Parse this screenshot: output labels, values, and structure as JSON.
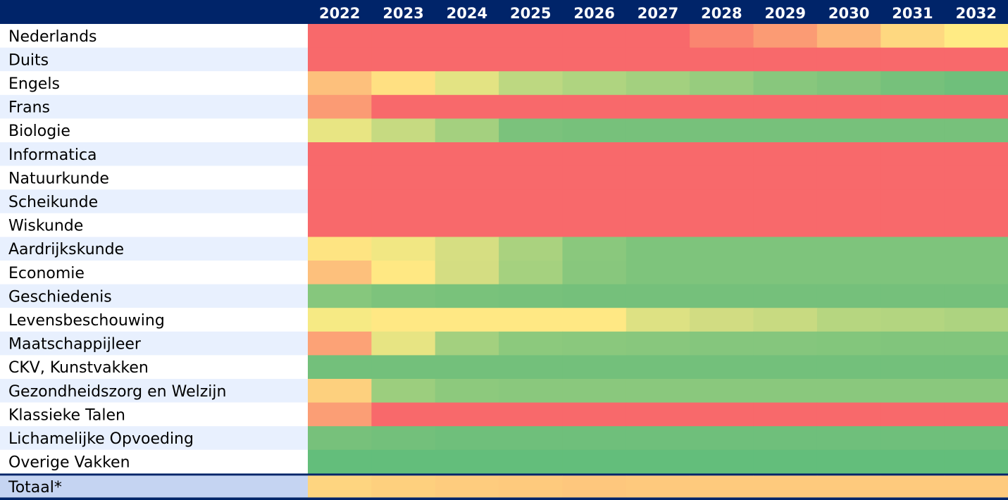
{
  "chart_data": {
    "type": "heatmap",
    "x": [
      "2022",
      "2023",
      "2024",
      "2025",
      "2026",
      "2027",
      "2028",
      "2029",
      "2030",
      "2031",
      "2032"
    ],
    "rows": [
      {
        "label": "Nederlands",
        "colors": [
          "#F8696B",
          "#F8696B",
          "#F8696B",
          "#F8696B",
          "#F8696B",
          "#F8696B",
          "#FA8570",
          "#FB9B74",
          "#FDB77A",
          "#FED880",
          "#FFEB84"
        ]
      },
      {
        "label": "Duits",
        "colors": [
          "#F8696B",
          "#F8696B",
          "#F8696B",
          "#F8696B",
          "#F8696B",
          "#F8696B",
          "#F8696B",
          "#F8696B",
          "#F8696B",
          "#F8696B",
          "#F8696B"
        ]
      },
      {
        "label": "Engels",
        "colors": [
          "#FDC07C",
          "#FFE082",
          "#E3E383",
          "#BDD881",
          "#AFD480",
          "#A3D07F",
          "#97CC7E",
          "#88C77D",
          "#80C47C",
          "#76C17B",
          "#6FBF7B"
        ]
      },
      {
        "label": "Frans",
        "colors": [
          "#FB9B74",
          "#F8696B",
          "#F8696B",
          "#F8696B",
          "#F8696B",
          "#F8696B",
          "#F8696B",
          "#F8696B",
          "#F8696B",
          "#F8696B",
          "#F8696B"
        ]
      },
      {
        "label": "Biologie",
        "colors": [
          "#E8E583",
          "#C6DA81",
          "#A4D07F",
          "#7BC27C",
          "#77C17B",
          "#77C17B",
          "#77C17B",
          "#77C17B",
          "#77C17B",
          "#77C17B",
          "#77C17B"
        ]
      },
      {
        "label": "Informatica",
        "colors": [
          "#F8696B",
          "#F8696B",
          "#F8696B",
          "#F8696B",
          "#F8696B",
          "#F8696B",
          "#F8696B",
          "#F8696B",
          "#F8696B",
          "#F8696B",
          "#F8696B"
        ]
      },
      {
        "label": "Natuurkunde",
        "colors": [
          "#F8696B",
          "#F8696B",
          "#F8696B",
          "#F8696B",
          "#F8696B",
          "#F8696B",
          "#F8696B",
          "#F8696B",
          "#F8696B",
          "#F8696B",
          "#F8696B"
        ]
      },
      {
        "label": "Scheikunde",
        "colors": [
          "#F8696B",
          "#F8696B",
          "#F8696B",
          "#F8696B",
          "#F8696B",
          "#F8696B",
          "#F8696B",
          "#F8696B",
          "#F8696B",
          "#F8696B",
          "#F8696B"
        ]
      },
      {
        "label": "Wiskunde",
        "colors": [
          "#F8696B",
          "#F8696B",
          "#F8696B",
          "#F8696B",
          "#F8696B",
          "#F8696B",
          "#F8696B",
          "#F8696B",
          "#F8696B",
          "#F8696B",
          "#F8696B"
        ]
      },
      {
        "label": "Aardrijkskunde",
        "colors": [
          "#FEE482",
          "#F1E783",
          "#D6DE82",
          "#AAD27F",
          "#8AC87D",
          "#7EC47C",
          "#7EC47C",
          "#7EC47C",
          "#7EC47C",
          "#7EC47C",
          "#7EC47C"
        ]
      },
      {
        "label": "Economie",
        "colors": [
          "#FDC07C",
          "#FFE883",
          "#D4DD82",
          "#A5D17F",
          "#88C77D",
          "#7EC47C",
          "#7EC47C",
          "#7EC47C",
          "#7EC47C",
          "#7EC47C",
          "#7EC47C"
        ]
      },
      {
        "label": "Geschiedenis",
        "colors": [
          "#86C77D",
          "#7DC37C",
          "#79C27B",
          "#77C17B",
          "#75C07B",
          "#75C07B",
          "#75C07B",
          "#75C07B",
          "#75C07B",
          "#75C07B",
          "#75C07B"
        ]
      },
      {
        "label": "Levensbeschouwing",
        "colors": [
          "#F6EA84",
          "#FFE884",
          "#FFE884",
          "#FFE884",
          "#FFE884",
          "#DDE183",
          "#D1DC82",
          "#C8DA81",
          "#B6D680",
          "#B3D580",
          "#ADD380"
        ]
      },
      {
        "label": "Maatschappijleer",
        "colors": [
          "#FCA276",
          "#E7E483",
          "#A3D07F",
          "#8CC97D",
          "#8AC87D",
          "#88C77D",
          "#85C67D",
          "#85C67D",
          "#83C67C",
          "#81C57C",
          "#81C57C"
        ]
      },
      {
        "label": "CKV, Kunstvakken",
        "colors": [
          "#73C07B",
          "#73C07B",
          "#73C07B",
          "#73C07B",
          "#73C07B",
          "#73C07B",
          "#73C07B",
          "#73C07B",
          "#73C07B",
          "#73C07B",
          "#73C07B"
        ]
      },
      {
        "label": "Gezondheidszorg en Welzijn",
        "colors": [
          "#FDD07E",
          "#9CCE7E",
          "#8DC97D",
          "#8AC87D",
          "#8AC87D",
          "#8AC87D",
          "#8AC87D",
          "#8AC87D",
          "#8AC87D",
          "#8AC87D",
          "#8AC87D"
        ]
      },
      {
        "label": "Klassieke Talen",
        "colors": [
          "#FB9E75",
          "#F8696B",
          "#F8696B",
          "#F8696B",
          "#F8696B",
          "#F8696B",
          "#F8696B",
          "#F8696B",
          "#F8696B",
          "#F8696B",
          "#F8696B"
        ]
      },
      {
        "label": "Lichamelijke Opvoeding",
        "colors": [
          "#77C17B",
          "#73C07B",
          "#6FBF7B",
          "#6FBF7B",
          "#6FBF7B",
          "#6FBF7B",
          "#6FBF7B",
          "#6FBF7B",
          "#6FBF7B",
          "#6FBF7B",
          "#6FBF7B"
        ]
      },
      {
        "label": "Overige Vakken",
        "colors": [
          "#63BE7B",
          "#63BE7B",
          "#63BE7B",
          "#63BE7B",
          "#63BE7B",
          "#63BE7B",
          "#63BE7B",
          "#63BE7B",
          "#63BE7B",
          "#63BE7B",
          "#63BE7B"
        ]
      }
    ],
    "total": {
      "label": "Totaal*",
      "colors": [
        "#FED580",
        "#FED07E",
        "#FECC7E",
        "#FECA7D",
        "#FEC77D",
        "#FEC97D",
        "#FECA7D",
        "#FECA7D",
        "#FECA7D",
        "#FECA7D",
        "#FECA7D"
      ]
    },
    "colors": {
      "header_bg": "#002469",
      "header_text": "#FFFFFF",
      "row_alt_bg": "#E8F0FE",
      "row_bg": "#FFFFFF",
      "total_bg": "#C5D4F2",
      "divider": "#002469"
    }
  }
}
